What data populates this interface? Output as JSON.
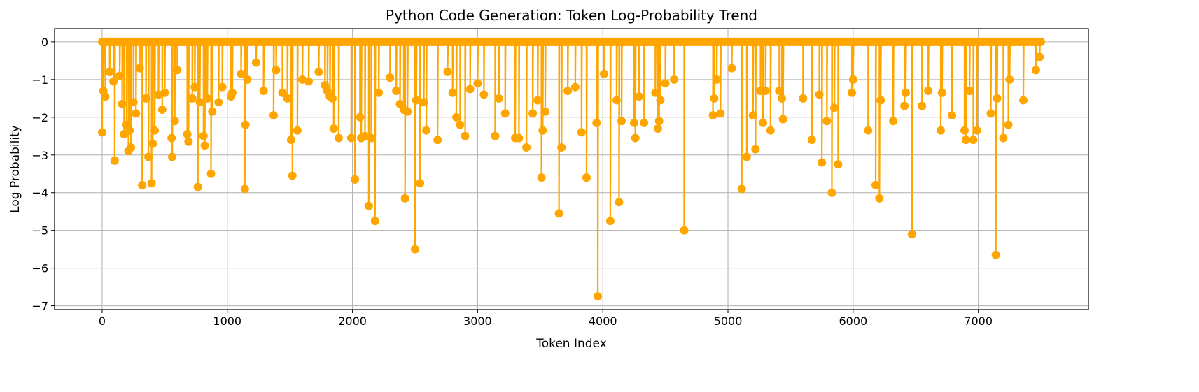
{
  "chart_data": {
    "type": "line",
    "title": "Python Code Generation: Token Log-Probability Trend",
    "xlabel": "Token Index",
    "ylabel": "Log Probability",
    "xlim": [
      -380,
      7880
    ],
    "ylim": [
      -7.1,
      0.35
    ],
    "xticks": [
      0,
      1000,
      2000,
      3000,
      4000,
      5000,
      6000,
      7000
    ],
    "yticks": [
      0,
      -1,
      -2,
      -3,
      -4,
      -5,
      -6,
      -7
    ],
    "grid": true,
    "marker": "circle",
    "series": [
      {
        "color": "#ffa500",
        "dips": [
          [
            0,
            -2.4
          ],
          [
            10,
            -1.3
          ],
          [
            25,
            -1.45
          ],
          [
            60,
            -0.8
          ],
          [
            90,
            -1.05
          ],
          [
            100,
            -3.15
          ],
          [
            140,
            -0.9
          ],
          [
            160,
            -1.65
          ],
          [
            175,
            -2.45
          ],
          [
            195,
            -2.2
          ],
          [
            210,
            -2.9
          ],
          [
            220,
            -2.35
          ],
          [
            230,
            -2.8
          ],
          [
            250,
            -1.6
          ],
          [
            270,
            -1.9
          ],
          [
            300,
            -0.7
          ],
          [
            320,
            -3.8
          ],
          [
            350,
            -1.5
          ],
          [
            370,
            -3.05
          ],
          [
            395,
            -3.75
          ],
          [
            405,
            -2.7
          ],
          [
            420,
            -2.35
          ],
          [
            450,
            -1.4
          ],
          [
            480,
            -1.8
          ],
          [
            500,
            -1.35
          ],
          [
            555,
            -2.55
          ],
          [
            560,
            -3.05
          ],
          [
            580,
            -2.1
          ],
          [
            600,
            -0.75
          ],
          [
            680,
            -2.45
          ],
          [
            690,
            -2.65
          ],
          [
            720,
            -1.5
          ],
          [
            740,
            -1.2
          ],
          [
            765,
            -3.85
          ],
          [
            780,
            -1.6
          ],
          [
            810,
            -2.5
          ],
          [
            820,
            -2.75
          ],
          [
            840,
            -1.5
          ],
          [
            870,
            -3.5
          ],
          [
            880,
            -1.85
          ],
          [
            930,
            -1.6
          ],
          [
            960,
            -1.2
          ],
          [
            1030,
            -1.45
          ],
          [
            1040,
            -1.35
          ],
          [
            1110,
            -0.85
          ],
          [
            1140,
            -3.9
          ],
          [
            1145,
            -2.2
          ],
          [
            1160,
            -1.0
          ],
          [
            1230,
            -0.55
          ],
          [
            1290,
            -1.3
          ],
          [
            1370,
            -1.95
          ],
          [
            1390,
            -0.75
          ],
          [
            1440,
            -1.35
          ],
          [
            1480,
            -1.5
          ],
          [
            1510,
            -2.6
          ],
          [
            1520,
            -3.55
          ],
          [
            1560,
            -2.35
          ],
          [
            1600,
            -1.0
          ],
          [
            1650,
            -1.05
          ],
          [
            1730,
            -0.8
          ],
          [
            1780,
            -1.15
          ],
          [
            1800,
            -1.3
          ],
          [
            1820,
            -1.45
          ],
          [
            1840,
            -1.5
          ],
          [
            1850,
            -2.3
          ],
          [
            1890,
            -2.55
          ],
          [
            1990,
            -2.55
          ],
          [
            2020,
            -3.65
          ],
          [
            2060,
            -2.0
          ],
          [
            2070,
            -2.55
          ],
          [
            2100,
            -2.5
          ],
          [
            2130,
            -4.35
          ],
          [
            2150,
            -2.55
          ],
          [
            2180,
            -4.75
          ],
          [
            2210,
            -1.35
          ],
          [
            2300,
            -0.95
          ],
          [
            2350,
            -1.3
          ],
          [
            2380,
            -1.65
          ],
          [
            2410,
            -1.8
          ],
          [
            2420,
            -4.15
          ],
          [
            2440,
            -1.85
          ],
          [
            2500,
            -5.5
          ],
          [
            2510,
            -1.55
          ],
          [
            2540,
            -3.75
          ],
          [
            2570,
            -1.6
          ],
          [
            2590,
            -2.35
          ],
          [
            2680,
            -2.6
          ],
          [
            2760,
            -0.8
          ],
          [
            2800,
            -1.35
          ],
          [
            2830,
            -2.0
          ],
          [
            2860,
            -2.2
          ],
          [
            2900,
            -2.5
          ],
          [
            2940,
            -1.25
          ],
          [
            3000,
            -1.1
          ],
          [
            3050,
            -1.4
          ],
          [
            3140,
            -2.5
          ],
          [
            3170,
            -1.5
          ],
          [
            3220,
            -1.9
          ],
          [
            3300,
            -2.55
          ],
          [
            3330,
            -2.55
          ],
          [
            3390,
            -2.8
          ],
          [
            3440,
            -1.9
          ],
          [
            3480,
            -1.55
          ],
          [
            3510,
            -3.6
          ],
          [
            3520,
            -2.35
          ],
          [
            3540,
            -1.85
          ],
          [
            3650,
            -4.55
          ],
          [
            3670,
            -2.8
          ],
          [
            3720,
            -1.3
          ],
          [
            3780,
            -1.2
          ],
          [
            3830,
            -2.4
          ],
          [
            3870,
            -3.6
          ],
          [
            3950,
            -2.15
          ],
          [
            3960,
            -6.75
          ],
          [
            4010,
            -0.85
          ],
          [
            4060,
            -4.75
          ],
          [
            4110,
            -1.55
          ],
          [
            4130,
            -4.25
          ],
          [
            4150,
            -2.1
          ],
          [
            4250,
            -2.15
          ],
          [
            4260,
            -2.55
          ],
          [
            4290,
            -1.45
          ],
          [
            4330,
            -2.15
          ],
          [
            4420,
            -1.35
          ],
          [
            4440,
            -2.3
          ],
          [
            4450,
            -2.1
          ],
          [
            4460,
            -1.55
          ],
          [
            4500,
            -1.1
          ],
          [
            4570,
            -1.0
          ],
          [
            4650,
            -5.0
          ],
          [
            4880,
            -1.95
          ],
          [
            4890,
            -1.5
          ],
          [
            4910,
            -1.0
          ],
          [
            4940,
            -1.9
          ],
          [
            5030,
            -0.7
          ],
          [
            5110,
            -3.9
          ],
          [
            5150,
            -3.05
          ],
          [
            5200,
            -1.95
          ],
          [
            5220,
            -2.85
          ],
          [
            5260,
            -1.3
          ],
          [
            5280,
            -2.15
          ],
          [
            5300,
            -1.3
          ],
          [
            5340,
            -2.35
          ],
          [
            5410,
            -1.3
          ],
          [
            5430,
            -1.5
          ],
          [
            5440,
            -2.05
          ],
          [
            5600,
            -1.5
          ],
          [
            5670,
            -2.6
          ],
          [
            5730,
            -1.4
          ],
          [
            5750,
            -3.2
          ],
          [
            5790,
            -2.1
          ],
          [
            5830,
            -4.0
          ],
          [
            5850,
            -1.75
          ],
          [
            5880,
            -3.25
          ],
          [
            5990,
            -1.35
          ],
          [
            6000,
            -1.0
          ],
          [
            6120,
            -2.35
          ],
          [
            6180,
            -3.8
          ],
          [
            6210,
            -4.15
          ],
          [
            6220,
            -1.55
          ],
          [
            6320,
            -2.1
          ],
          [
            6410,
            -1.7
          ],
          [
            6420,
            -1.35
          ],
          [
            6470,
            -5.1
          ],
          [
            6550,
            -1.7
          ],
          [
            6600,
            -1.3
          ],
          [
            6700,
            -2.35
          ],
          [
            6710,
            -1.35
          ],
          [
            6790,
            -1.95
          ],
          [
            6890,
            -2.35
          ],
          [
            6900,
            -2.6
          ],
          [
            6930,
            -1.3
          ],
          [
            6960,
            -2.6
          ],
          [
            6990,
            -2.35
          ],
          [
            7100,
            -1.9
          ],
          [
            7140,
            -5.65
          ],
          [
            7150,
            -1.5
          ],
          [
            7200,
            -2.55
          ],
          [
            7240,
            -2.2
          ],
          [
            7250,
            -1.0
          ],
          [
            7360,
            -1.55
          ],
          [
            7460,
            -0.75
          ],
          [
            7490,
            -0.4
          ]
        ]
      }
    ]
  }
}
